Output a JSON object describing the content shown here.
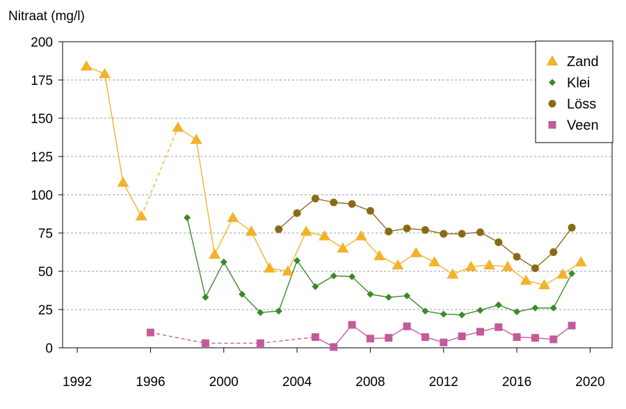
{
  "chart_data": {
    "type": "line",
    "ylabel": "Nitraat (mg/l)",
    "xlabel": "",
    "xlim": [
      1991.2,
      2021.2
    ],
    "ylim": [
      0,
      200
    ],
    "x_ticks": [
      1992,
      1996,
      2000,
      2004,
      2008,
      2012,
      2016,
      2020
    ],
    "y_ticks": [
      0,
      25,
      50,
      75,
      100,
      125,
      150,
      175,
      200
    ],
    "grid": "horizontal dashed",
    "legend_position": "top-right",
    "series": [
      {
        "name": "Zand",
        "color": "#F2B22A",
        "marker": "triangle",
        "points": [
          [
            1992.5,
            184
          ],
          [
            1993.5,
            179
          ],
          [
            1994.5,
            108
          ],
          [
            1995.5,
            86
          ],
          [
            1997.5,
            144
          ],
          [
            1998.5,
            136
          ],
          [
            1999.5,
            61
          ],
          [
            2000.5,
            85
          ],
          [
            2001.5,
            76
          ],
          [
            2002.5,
            52
          ],
          [
            2003.5,
            50
          ],
          [
            2004.5,
            76
          ],
          [
            2005.5,
            73
          ],
          [
            2006.5,
            65
          ],
          [
            2007.5,
            73
          ],
          [
            2008.5,
            60
          ],
          [
            2009.5,
            54
          ],
          [
            2010.5,
            62
          ],
          [
            2011.5,
            56
          ],
          [
            2012.5,
            48
          ],
          [
            2013.5,
            53
          ],
          [
            2014.5,
            54
          ],
          [
            2015.5,
            53
          ],
          [
            2016.5,
            44
          ],
          [
            2017.5,
            41
          ],
          [
            2018.5,
            48
          ],
          [
            2019.5,
            56
          ]
        ],
        "dashed_segments": [
          [
            1995.5,
            1997.5
          ]
        ]
      },
      {
        "name": "Klei",
        "color": "#3A8A26",
        "marker": "diamond",
        "points": [
          [
            1998,
            85
          ],
          [
            1999,
            33
          ],
          [
            2000,
            56
          ],
          [
            2001,
            35
          ],
          [
            2002,
            23
          ],
          [
            2003,
            24
          ],
          [
            2004,
            57
          ],
          [
            2005,
            40
          ],
          [
            2006,
            47
          ],
          [
            2007,
            46.5
          ],
          [
            2008,
            35
          ],
          [
            2009,
            33
          ],
          [
            2010,
            34
          ],
          [
            2011,
            24
          ],
          [
            2012,
            22
          ],
          [
            2013,
            21.5
          ],
          [
            2014,
            24.5
          ],
          [
            2015,
            28
          ],
          [
            2016,
            23.5
          ],
          [
            2017,
            26
          ],
          [
            2018,
            26
          ],
          [
            2019,
            48.5
          ]
        ],
        "dashed_segments": []
      },
      {
        "name": "Löss",
        "color": "#8B6A17",
        "marker": "circle",
        "points": [
          [
            2003,
            77.5
          ],
          [
            2004,
            88
          ],
          [
            2005,
            97.5
          ],
          [
            2006,
            95
          ],
          [
            2007,
            94
          ],
          [
            2008,
            89.5
          ],
          [
            2009,
            76
          ],
          [
            2010,
            78
          ],
          [
            2011,
            77
          ],
          [
            2012,
            74.5
          ],
          [
            2013,
            74.5
          ],
          [
            2014,
            75.5
          ],
          [
            2015,
            69
          ],
          [
            2016,
            59.5
          ],
          [
            2017,
            52
          ],
          [
            2018,
            62.5
          ],
          [
            2019,
            78.5
          ]
        ],
        "dashed_segments": []
      },
      {
        "name": "Veen",
        "color": "#C45A9A",
        "marker": "square",
        "points": [
          [
            1996,
            10
          ],
          [
            1999,
            3
          ],
          [
            2002,
            3
          ],
          [
            2005,
            7
          ],
          [
            2006,
            0.5
          ],
          [
            2007,
            15
          ],
          [
            2008,
            6
          ],
          [
            2009,
            6.5
          ],
          [
            2010,
            14
          ],
          [
            2011,
            7
          ],
          [
            2012,
            3.5
          ],
          [
            2013,
            7.5
          ],
          [
            2014,
            10.5
          ],
          [
            2015,
            13.5
          ],
          [
            2016,
            7
          ],
          [
            2017,
            6.5
          ],
          [
            2018,
            5.5
          ],
          [
            2019,
            14.5
          ]
        ],
        "dashed_segments": [
          [
            1996,
            1999
          ],
          [
            1999,
            2002
          ],
          [
            2002,
            2005
          ]
        ]
      }
    ]
  }
}
